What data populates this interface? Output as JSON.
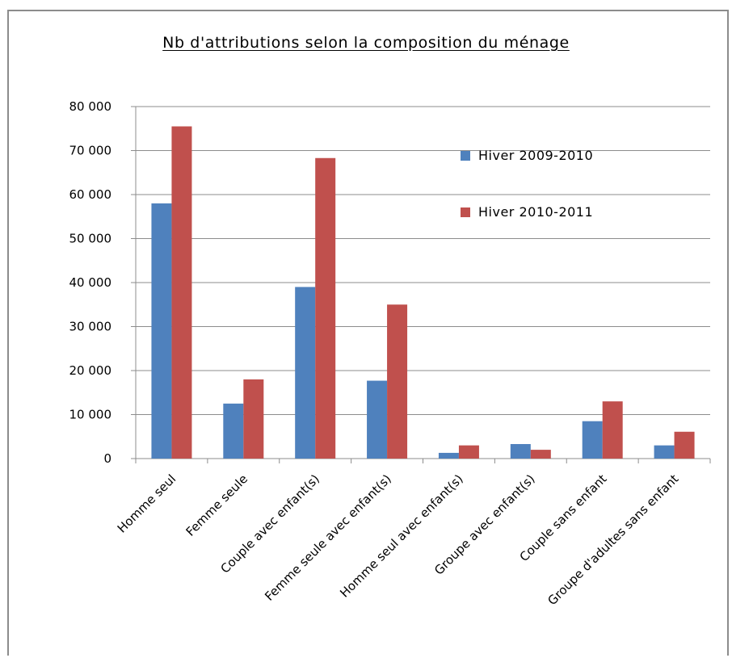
{
  "colors": {
    "series1": "#4f81bd",
    "series2": "#c0504d",
    "grid": "#8c8c8c",
    "axis": "#8c8c8c",
    "frame": "#8c8c8c"
  },
  "chart_data": {
    "type": "bar",
    "title": "Nb d'attributions selon la composition du ménage",
    "xlabel": "",
    "ylabel": "",
    "ylim": [
      0,
      80000
    ],
    "yticks": [
      0,
      10000,
      20000,
      30000,
      40000,
      50000,
      60000,
      70000,
      80000
    ],
    "ytick_labels": [
      "0",
      "10 000",
      "20 000",
      "30 000",
      "40 000",
      "50 000",
      "60 000",
      "70 000",
      "80 000"
    ],
    "grid": true,
    "legend_position": "top-right",
    "categories": [
      "Homme seul",
      "Femme seule",
      "Couple avec enfant(s)",
      "Femme seule avec enfant(s)",
      "Homme seul avec enfant(s)",
      "Groupe avec enfant(s)",
      "Couple sans enfant",
      "Groupe d'adultes sans enfant"
    ],
    "series": [
      {
        "name": "Hiver 2009-2010",
        "values": [
          58000,
          12500,
          39000,
          17700,
          1300,
          3300,
          8500,
          3000
        ]
      },
      {
        "name": "Hiver 2010-2011",
        "values": [
          75500,
          18000,
          68300,
          35000,
          3000,
          2000,
          13000,
          6100
        ]
      }
    ]
  }
}
